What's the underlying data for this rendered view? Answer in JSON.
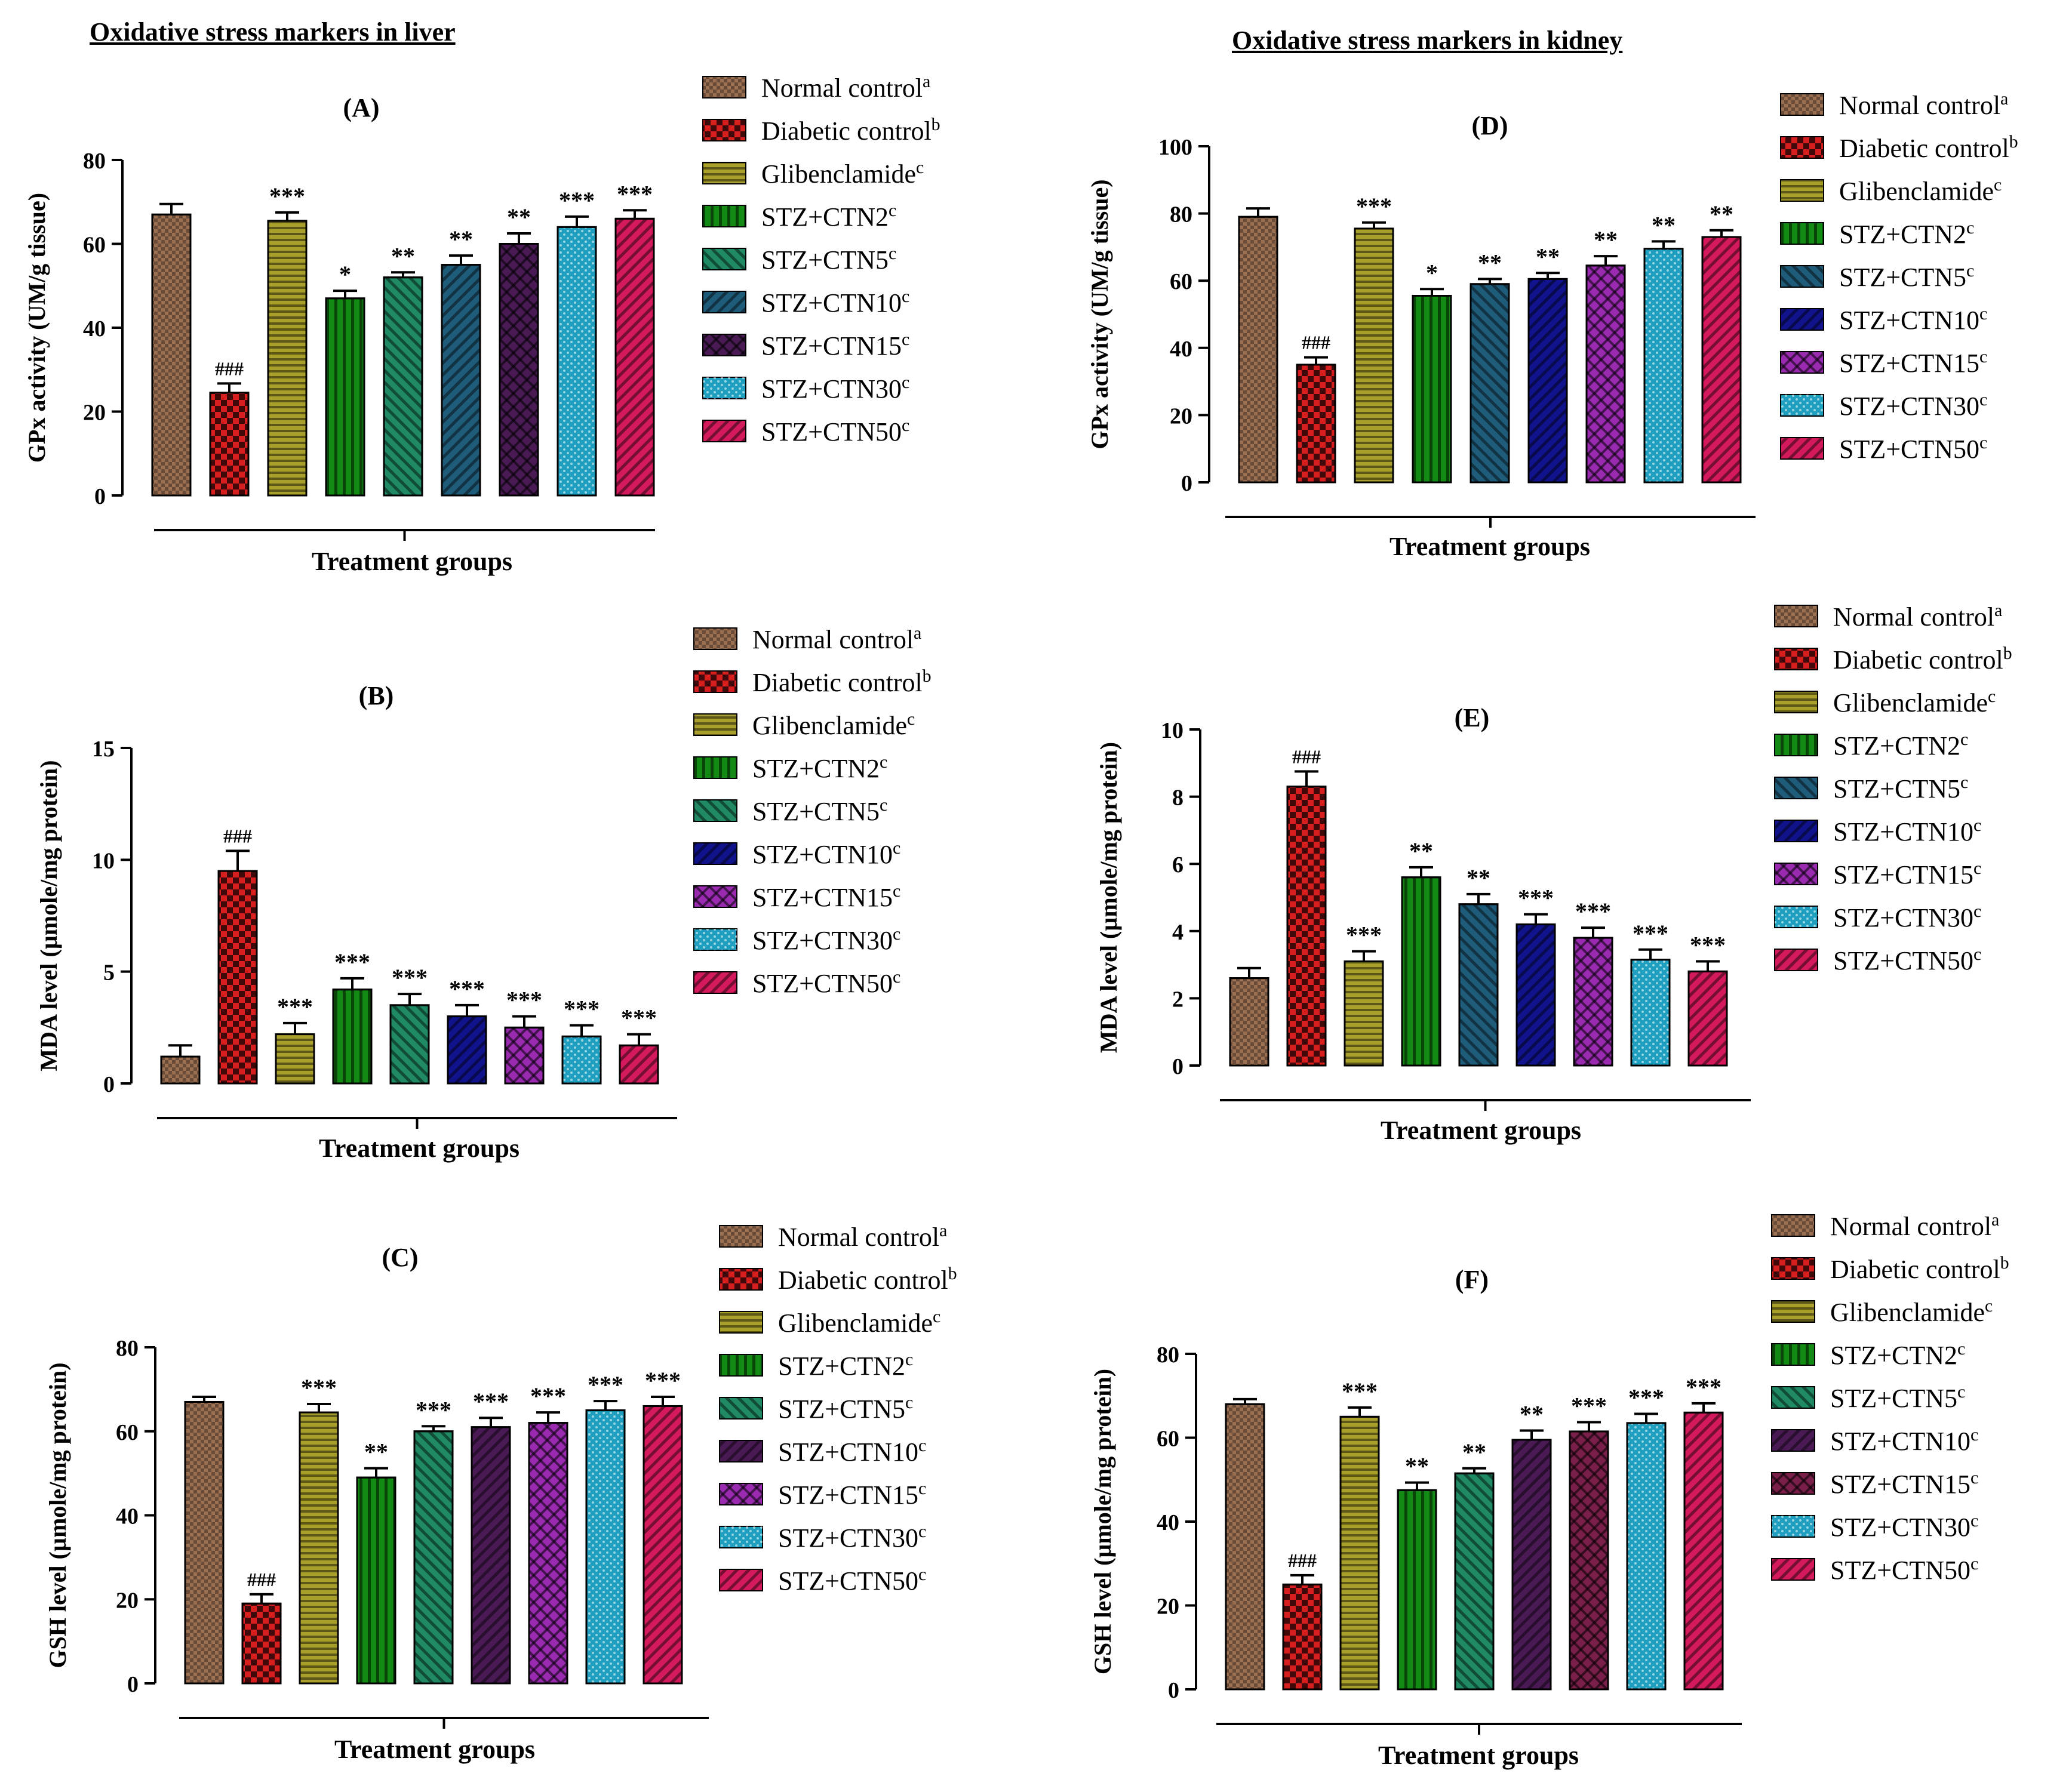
{
  "titles": {
    "liver": "Oxidative stress markers in liver",
    "kidney": "Oxidative stress markers in kidney"
  },
  "groups": [
    "Normal control",
    "Diabetic control",
    "Glibenclamide",
    "STZ+CTN2",
    "STZ+CTN5",
    "STZ+CTN10",
    "STZ+CTN15",
    "STZ+CTN30",
    "STZ+CTN50"
  ],
  "group_superscripts": [
    "a",
    "b",
    "c",
    "c",
    "c",
    "c",
    "c",
    "c",
    "c"
  ],
  "chart_data": [
    {
      "id": "A",
      "type": "bar",
      "panel_label": "(A)",
      "ylabel": "GPx activity (UM/g tissue)",
      "xlabel": "Treatment groups",
      "ylim": [
        0,
        80
      ],
      "yticks": [
        0,
        20,
        40,
        60,
        80
      ],
      "categories": [
        "Normal control",
        "Diabetic control",
        "Glibenclamide",
        "STZ+CTN2",
        "STZ+CTN5",
        "STZ+CTN10",
        "STZ+CTN15",
        "STZ+CTN30",
        "STZ+CTN50"
      ],
      "values": [
        67,
        24.5,
        65.5,
        47,
        52,
        55,
        60,
        64,
        66
      ],
      "errors": [
        2.5,
        2.2,
        2,
        1.8,
        1.2,
        2.2,
        2.5,
        2.5,
        2
      ],
      "annotations": [
        "",
        "###",
        "***",
        "*",
        "**",
        "**",
        "**",
        "***",
        "***"
      ],
      "legend_position": "top-right"
    },
    {
      "id": "B",
      "type": "bar",
      "panel_label": "(B)",
      "ylabel": "MDA level (µmole/mg protein)",
      "xlabel": "Treatment groups",
      "ylim": [
        0,
        15
      ],
      "yticks": [
        0,
        5,
        10,
        15
      ],
      "categories": [
        "Normal control",
        "Diabetic control",
        "Glibenclamide",
        "STZ+CTN2",
        "STZ+CTN5",
        "STZ+CTN10",
        "STZ+CTN15",
        "STZ+CTN30",
        "STZ+CTN50"
      ],
      "values": [
        1.2,
        9.5,
        2.2,
        4.2,
        3.5,
        3.0,
        2.5,
        2.1,
        1.7
      ],
      "errors": [
        0.5,
        0.9,
        0.5,
        0.5,
        0.5,
        0.5,
        0.5,
        0.5,
        0.5
      ],
      "annotations": [
        "",
        "###",
        "***",
        "***",
        "***",
        "***",
        "***",
        "***",
        "***"
      ],
      "legend_position": "top-right"
    },
    {
      "id": "C",
      "type": "bar",
      "panel_label": "(C)",
      "ylabel": "GSH level (µmole/mg protein)",
      "xlabel": "Treatment groups",
      "ylim": [
        0,
        80
      ],
      "yticks": [
        0,
        20,
        40,
        60,
        80
      ],
      "categories": [
        "Normal control",
        "Diabetic control",
        "Glibenclamide",
        "STZ+CTN2",
        "STZ+CTN5",
        "STZ+CTN10",
        "STZ+CTN15",
        "STZ+CTN30",
        "STZ+CTN50"
      ],
      "values": [
        67,
        19,
        64.5,
        49,
        60,
        61,
        62,
        65,
        66
      ],
      "errors": [
        1.2,
        2.2,
        2,
        2.2,
        1.2,
        2.2,
        2.5,
        2.2,
        2.2
      ],
      "annotations": [
        "",
        "###",
        "***",
        "**",
        "***",
        "***",
        "***",
        "***",
        "***"
      ],
      "legend_position": "top-right"
    },
    {
      "id": "D",
      "type": "bar",
      "panel_label": "(D)",
      "ylabel": "GPx activity (UM/g tissue)",
      "xlabel": "Treatment groups",
      "ylim": [
        0,
        100
      ],
      "yticks": [
        0,
        20,
        40,
        60,
        80,
        100
      ],
      "categories": [
        "Normal control",
        "Diabetic control",
        "Glibenclamide",
        "STZ+CTN2",
        "STZ+CTN5",
        "STZ+CTN10",
        "STZ+CTN15",
        "STZ+CTN30",
        "STZ+CTN50"
      ],
      "values": [
        79,
        35,
        75.5,
        55.5,
        59,
        60.5,
        64.5,
        69.5,
        73
      ],
      "errors": [
        2.5,
        2.2,
        1.8,
        2,
        1.5,
        1.8,
        2.8,
        2.2,
        2
      ],
      "annotations": [
        "",
        "###",
        "***",
        "*",
        "**",
        "**",
        "**",
        "**",
        "**"
      ],
      "legend_position": "top-right"
    },
    {
      "id": "E",
      "type": "bar",
      "panel_label": "(E)",
      "ylabel": "MDA level (µmole/mg protein)",
      "xlabel": "Treatment groups",
      "ylim": [
        0,
        10
      ],
      "yticks": [
        0,
        2,
        4,
        6,
        8,
        10
      ],
      "categories": [
        "Normal control",
        "Diabetic control",
        "Glibenclamide",
        "STZ+CTN2",
        "STZ+CTN5",
        "STZ+CTN10",
        "STZ+CTN15",
        "STZ+CTN30",
        "STZ+CTN50"
      ],
      "values": [
        2.6,
        8.3,
        3.1,
        5.6,
        4.8,
        4.2,
        3.8,
        3.15,
        2.8
      ],
      "errors": [
        0.3,
        0.45,
        0.3,
        0.3,
        0.3,
        0.3,
        0.3,
        0.3,
        0.3
      ],
      "annotations": [
        "",
        "###",
        "***",
        "**",
        "**",
        "***",
        "***",
        "***",
        "***"
      ],
      "legend_position": "top-right"
    },
    {
      "id": "F",
      "type": "bar",
      "panel_label": "(F)",
      "ylabel": "GSH level (µmole/mg protein)",
      "xlabel": "Treatment groups",
      "ylim": [
        0,
        80
      ],
      "yticks": [
        0,
        20,
        40,
        60,
        80
      ],
      "categories": [
        "Normal control",
        "Diabetic control",
        "Glibenclamide",
        "STZ+CTN2",
        "STZ+CTN5",
        "STZ+CTN10",
        "STZ+CTN15",
        "STZ+CTN30",
        "STZ+CTN50"
      ],
      "values": [
        68,
        25,
        65,
        47.5,
        51.5,
        59.5,
        61.5,
        63.5,
        66
      ],
      "errors": [
        1.2,
        2.2,
        2.2,
        1.8,
        1.2,
        2.2,
        2.2,
        2.2,
        2.2
      ],
      "annotations": [
        "",
        "###",
        "***",
        "**",
        "**",
        "**",
        "***",
        "***",
        "***"
      ],
      "legend_position": "top-right"
    }
  ],
  "colors": {
    "A": [
      "#9b6f52",
      "#d81f1f",
      "#a9a02c",
      "#138a13",
      "#1f8a63",
      "#1f5c7a",
      "#4a1a55",
      "#1e9fc0",
      "#d4195c"
    ],
    "B": [
      "#9b6f52",
      "#d81f1f",
      "#a9a02c",
      "#138a13",
      "#1f8a63",
      "#10138c",
      "#9a2ab0",
      "#1e9fc0",
      "#d4195c"
    ],
    "C": [
      "#9b6f52",
      "#d81f1f",
      "#a9a02c",
      "#138a13",
      "#1f8a63",
      "#4a1a55",
      "#9a2ab0",
      "#1e9fc0",
      "#d4195c"
    ],
    "D": [
      "#9b6f52",
      "#d81f1f",
      "#a9a02c",
      "#138a13",
      "#1f5c7a",
      "#10138c",
      "#9a2ab0",
      "#1e9fc0",
      "#d4195c"
    ],
    "E": [
      "#9b6f52",
      "#d81f1f",
      "#a9a02c",
      "#138a13",
      "#1f5c7a",
      "#10138c",
      "#9a2ab0",
      "#1e9fc0",
      "#d4195c"
    ],
    "F": [
      "#9b6f52",
      "#d81f1f",
      "#a9a02c",
      "#138a13",
      "#1f8a63",
      "#4a1a55",
      "#7a1f4a",
      "#1e9fc0",
      "#d4195c"
    ]
  }
}
